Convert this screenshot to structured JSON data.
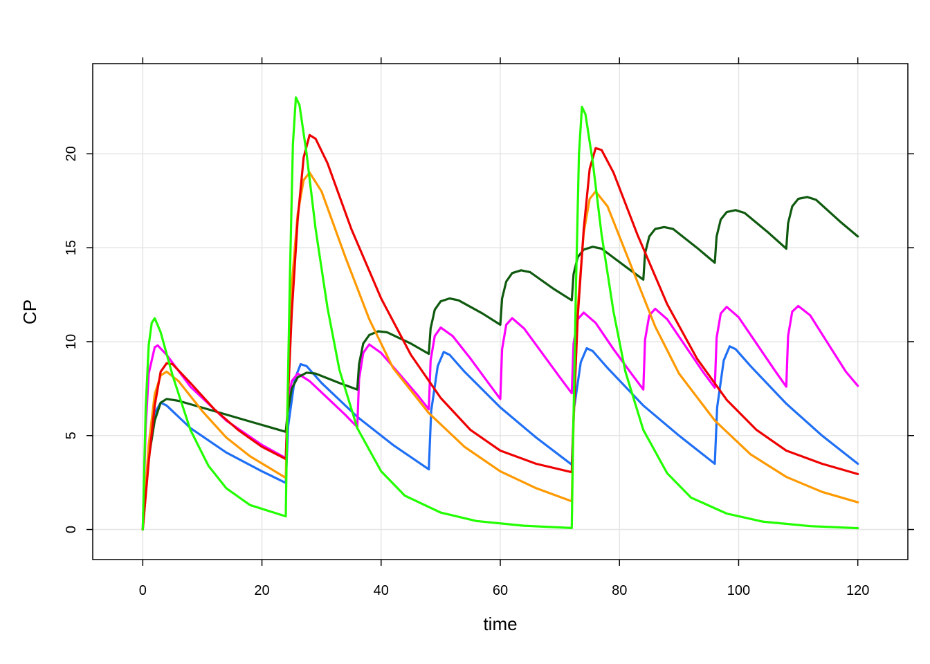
{
  "chart_data": {
    "type": "line",
    "xlabel": "time",
    "ylabel": "CP",
    "xlim": [
      -8.4,
      128.4
    ],
    "ylim": [
      -1.6,
      24.8
    ],
    "xticks": [
      0,
      20,
      40,
      60,
      80,
      100,
      120
    ],
    "yticks": [
      0,
      5,
      10,
      15,
      20
    ],
    "grid": true,
    "series": [
      {
        "color": "#1f6ff5",
        "points": [
          [
            0,
            0
          ],
          [
            1,
            4.3
          ],
          [
            2,
            6.2
          ],
          [
            3,
            6.75
          ],
          [
            4,
            6.6
          ],
          [
            8,
            5.4
          ],
          [
            14,
            4.1
          ],
          [
            20,
            3.1
          ],
          [
            24,
            2.48
          ],
          [
            24.4,
            5.5
          ],
          [
            25.5,
            8.0
          ],
          [
            26.5,
            8.8
          ],
          [
            27.5,
            8.7
          ],
          [
            30,
            7.8
          ],
          [
            36,
            6.0
          ],
          [
            42,
            4.5
          ],
          [
            48,
            3.2
          ],
          [
            48.4,
            6.3
          ],
          [
            49.5,
            8.7
          ],
          [
            50.5,
            9.45
          ],
          [
            51.5,
            9.3
          ],
          [
            54,
            8.4
          ],
          [
            60,
            6.5
          ],
          [
            66,
            4.9
          ],
          [
            72,
            3.45
          ],
          [
            72.4,
            6.5
          ],
          [
            73.5,
            8.9
          ],
          [
            74.5,
            9.65
          ],
          [
            75.5,
            9.5
          ],
          [
            78,
            8.6
          ],
          [
            84,
            6.6
          ],
          [
            90,
            5.0
          ],
          [
            96,
            3.5
          ],
          [
            96.4,
            6.5
          ],
          [
            97.5,
            9.0
          ],
          [
            98.5,
            9.75
          ],
          [
            99.5,
            9.6
          ],
          [
            102,
            8.7
          ],
          [
            108,
            6.7
          ],
          [
            114,
            5.0
          ],
          [
            120,
            3.5
          ]
        ]
      },
      {
        "color": "#ff00ff",
        "points": [
          [
            0,
            0
          ],
          [
            0.5,
            5.5
          ],
          [
            1,
            8.3
          ],
          [
            2,
            9.7
          ],
          [
            2.5,
            9.8
          ],
          [
            4,
            9.3
          ],
          [
            8,
            7.6
          ],
          [
            14,
            5.8
          ],
          [
            20,
            4.5
          ],
          [
            24,
            3.8
          ],
          [
            24.3,
            6.5
          ],
          [
            25,
            7.9
          ],
          [
            26,
            8.3
          ],
          [
            28,
            7.9
          ],
          [
            31,
            7.0
          ],
          [
            34,
            6.1
          ],
          [
            36,
            5.45
          ],
          [
            36.3,
            8.0
          ],
          [
            37,
            9.4
          ],
          [
            38,
            9.85
          ],
          [
            40,
            9.4
          ],
          [
            43,
            8.3
          ],
          [
            46,
            7.2
          ],
          [
            48,
            6.4
          ],
          [
            48.3,
            9.0
          ],
          [
            49,
            10.3
          ],
          [
            50,
            10.75
          ],
          [
            52,
            10.3
          ],
          [
            55,
            9.1
          ],
          [
            58,
            7.8
          ],
          [
            60,
            6.95
          ],
          [
            60.3,
            9.6
          ],
          [
            61,
            10.9
          ],
          [
            62,
            11.25
          ],
          [
            64,
            10.7
          ],
          [
            67,
            9.4
          ],
          [
            70,
            8.1
          ],
          [
            72,
            7.25
          ],
          [
            72.3,
            9.9
          ],
          [
            73,
            11.2
          ],
          [
            74,
            11.55
          ],
          [
            76,
            11.0
          ],
          [
            79,
            9.6
          ],
          [
            82,
            8.3
          ],
          [
            84,
            7.45
          ],
          [
            84.3,
            10.1
          ],
          [
            85,
            11.4
          ],
          [
            86,
            11.75
          ],
          [
            88,
            11.2
          ],
          [
            91,
            9.8
          ],
          [
            94,
            8.4
          ],
          [
            96,
            7.55
          ],
          [
            96.3,
            10.2
          ],
          [
            97,
            11.5
          ],
          [
            98,
            11.85
          ],
          [
            100,
            11.3
          ],
          [
            103,
            9.9
          ],
          [
            106,
            8.5
          ],
          [
            108,
            7.6
          ],
          [
            108.3,
            10.3
          ],
          [
            109,
            11.6
          ],
          [
            110,
            11.9
          ],
          [
            112,
            11.4
          ],
          [
            115,
            9.9
          ],
          [
            118,
            8.4
          ],
          [
            120,
            7.65
          ]
        ]
      },
      {
        "color": "#0f5a0f",
        "points": [
          [
            0,
            0
          ],
          [
            1,
            3.8
          ],
          [
            2,
            5.8
          ],
          [
            3,
            6.75
          ],
          [
            4,
            6.95
          ],
          [
            6,
            6.85
          ],
          [
            12,
            6.3
          ],
          [
            18,
            5.75
          ],
          [
            24,
            5.2
          ],
          [
            24.3,
            6.2
          ],
          [
            25,
            7.5
          ],
          [
            26,
            8.1
          ],
          [
            27.5,
            8.35
          ],
          [
            29,
            8.3
          ],
          [
            33,
            7.8
          ],
          [
            36,
            7.45
          ],
          [
            36.3,
            8.8
          ],
          [
            37,
            9.9
          ],
          [
            38,
            10.35
          ],
          [
            39.5,
            10.55
          ],
          [
            41,
            10.5
          ],
          [
            45,
            9.9
          ],
          [
            48,
            9.35
          ],
          [
            48.3,
            10.7
          ],
          [
            49,
            11.7
          ],
          [
            50,
            12.15
          ],
          [
            51.5,
            12.3
          ],
          [
            53,
            12.2
          ],
          [
            57,
            11.5
          ],
          [
            60,
            10.9
          ],
          [
            60.3,
            12.3
          ],
          [
            61,
            13.2
          ],
          [
            62,
            13.65
          ],
          [
            63.5,
            13.8
          ],
          [
            65,
            13.7
          ],
          [
            69,
            12.8
          ],
          [
            72,
            12.2
          ],
          [
            72.3,
            13.6
          ],
          [
            73,
            14.5
          ],
          [
            74,
            14.9
          ],
          [
            75.5,
            15.05
          ],
          [
            77,
            14.95
          ],
          [
            81,
            14.0
          ],
          [
            84,
            13.3
          ],
          [
            84.3,
            14.7
          ],
          [
            85,
            15.6
          ],
          [
            86,
            16.0
          ],
          [
            87.5,
            16.1
          ],
          [
            89,
            16.0
          ],
          [
            93,
            15.0
          ],
          [
            96,
            14.2
          ],
          [
            96.3,
            15.6
          ],
          [
            97,
            16.5
          ],
          [
            98,
            16.9
          ],
          [
            99.5,
            17.0
          ],
          [
            101,
            16.85
          ],
          [
            105,
            15.8
          ],
          [
            108,
            14.95
          ],
          [
            108.3,
            16.3
          ],
          [
            109,
            17.2
          ],
          [
            110,
            17.6
          ],
          [
            111.5,
            17.7
          ],
          [
            113,
            17.55
          ],
          [
            117,
            16.4
          ],
          [
            120,
            15.6
          ]
        ]
      },
      {
        "color": "#ff9900",
        "points": [
          [
            0,
            0
          ],
          [
            1,
            4.5
          ],
          [
            2,
            7.2
          ],
          [
            3,
            8.2
          ],
          [
            4,
            8.4
          ],
          [
            6,
            7.9
          ],
          [
            10,
            6.3
          ],
          [
            14,
            4.9
          ],
          [
            18,
            3.9
          ],
          [
            24,
            2.75
          ],
          [
            24.3,
            7.0
          ],
          [
            25,
            13.0
          ],
          [
            26,
            16.8
          ],
          [
            27,
            18.6
          ],
          [
            28,
            19.0
          ],
          [
            30,
            18.0
          ],
          [
            34,
            14.5
          ],
          [
            38,
            11.2
          ],
          [
            42,
            8.6
          ],
          [
            48,
            6.2
          ],
          [
            54,
            4.4
          ],
          [
            60,
            3.1
          ],
          [
            66,
            2.2
          ],
          [
            72,
            1.5
          ],
          [
            72.3,
            5.7
          ],
          [
            73,
            11.8
          ],
          [
            74,
            15.8
          ],
          [
            75,
            17.6
          ],
          [
            76,
            18.0
          ],
          [
            78,
            17.2
          ],
          [
            82,
            14.0
          ],
          [
            86,
            10.8
          ],
          [
            90,
            8.3
          ],
          [
            96,
            5.8
          ],
          [
            102,
            4.0
          ],
          [
            108,
            2.8
          ],
          [
            114,
            2.0
          ],
          [
            120,
            1.45
          ]
        ]
      },
      {
        "color": "#ee0000",
        "points": [
          [
            0,
            0
          ],
          [
            1,
            3.6
          ],
          [
            2,
            6.6
          ],
          [
            3,
            8.4
          ],
          [
            4,
            8.85
          ],
          [
            5,
            8.8
          ],
          [
            8,
            7.8
          ],
          [
            12,
            6.4
          ],
          [
            16,
            5.3
          ],
          [
            20,
            4.4
          ],
          [
            24,
            3.75
          ],
          [
            24.3,
            6.5
          ],
          [
            25,
            11.5
          ],
          [
            26,
            16.5
          ],
          [
            27,
            19.8
          ],
          [
            28,
            21.0
          ],
          [
            29,
            20.8
          ],
          [
            31,
            19.5
          ],
          [
            35,
            16.0
          ],
          [
            40,
            12.3
          ],
          [
            45,
            9.3
          ],
          [
            50,
            7.0
          ],
          [
            55,
            5.3
          ],
          [
            60,
            4.2
          ],
          [
            66,
            3.5
          ],
          [
            72,
            3.05
          ],
          [
            72.3,
            6.0
          ],
          [
            73,
            11.3
          ],
          [
            74,
            16.0
          ],
          [
            75,
            19.2
          ],
          [
            76,
            20.3
          ],
          [
            77,
            20.2
          ],
          [
            79,
            19.0
          ],
          [
            83,
            15.7
          ],
          [
            88,
            12.0
          ],
          [
            93,
            9.1
          ],
          [
            98,
            6.9
          ],
          [
            103,
            5.3
          ],
          [
            108,
            4.2
          ],
          [
            114,
            3.5
          ],
          [
            120,
            2.95
          ]
        ]
      },
      {
        "color": "#22ff00",
        "points": [
          [
            0,
            0
          ],
          [
            0.5,
            6.5
          ],
          [
            1,
            9.8
          ],
          [
            1.5,
            11.0
          ],
          [
            2,
            11.25
          ],
          [
            3,
            10.5
          ],
          [
            5,
            8.2
          ],
          [
            8,
            5.3
          ],
          [
            11,
            3.4
          ],
          [
            14,
            2.2
          ],
          [
            18,
            1.3
          ],
          [
            24,
            0.7
          ],
          [
            24.2,
            5.0
          ],
          [
            24.7,
            13.5
          ],
          [
            25.2,
            20.5
          ],
          [
            25.7,
            23.0
          ],
          [
            26.3,
            22.6
          ],
          [
            27.5,
            20.0
          ],
          [
            29,
            16.0
          ],
          [
            31,
            11.8
          ],
          [
            33,
            8.5
          ],
          [
            36,
            5.4
          ],
          [
            40,
            3.1
          ],
          [
            44,
            1.8
          ],
          [
            50,
            0.9
          ],
          [
            56,
            0.45
          ],
          [
            64,
            0.2
          ],
          [
            72,
            0.08
          ],
          [
            72.2,
            4.5
          ],
          [
            72.7,
            13.0
          ],
          [
            73.2,
            20.0
          ],
          [
            73.7,
            22.5
          ],
          [
            74.3,
            22.1
          ],
          [
            75.5,
            19.6
          ],
          [
            77,
            15.7
          ],
          [
            79,
            11.6
          ],
          [
            81,
            8.4
          ],
          [
            84,
            5.3
          ],
          [
            88,
            3.0
          ],
          [
            92,
            1.7
          ],
          [
            98,
            0.85
          ],
          [
            104,
            0.42
          ],
          [
            112,
            0.18
          ],
          [
            120,
            0.07
          ]
        ]
      }
    ]
  }
}
